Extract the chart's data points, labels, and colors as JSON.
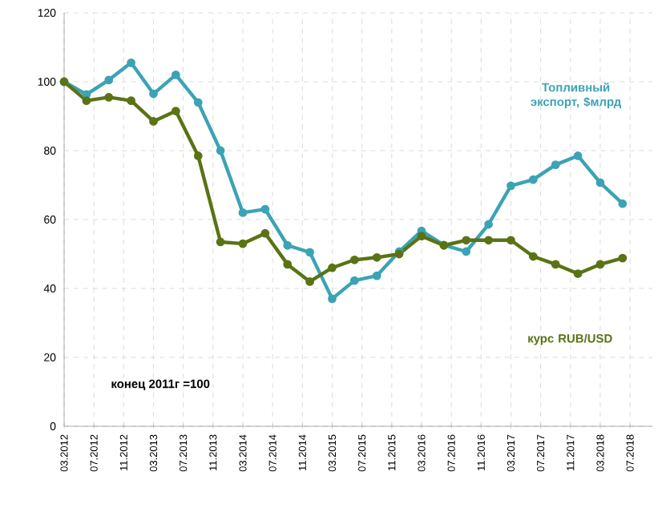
{
  "chart_data": {
    "type": "line",
    "x": [
      "2012-03",
      "2012-06",
      "2012-09",
      "2012-12",
      "2013-03",
      "2013-06",
      "2013-09",
      "2013-12",
      "2014-03",
      "2014-06",
      "2014-09",
      "2014-12",
      "2015-03",
      "2015-06",
      "2015-09",
      "2015-12",
      "2016-03",
      "2016-06",
      "2016-09",
      "2016-12",
      "2017-03",
      "2017-06",
      "2017-09",
      "2017-12",
      "2018-03",
      "2018-06"
    ],
    "series": [
      {
        "name": "Топливный экспорт, $млрд",
        "color": "#3ba3b5",
        "values": [
          100,
          96.3,
          100.5,
          105.5,
          96.5,
          102,
          94,
          80,
          62,
          63,
          52.5,
          50.5,
          37,
          42.3,
          43.7,
          50.7,
          56.7,
          52.6,
          50.7,
          58.6,
          69.8,
          71.6,
          75.9,
          78.5,
          70.7,
          64.6
        ]
      },
      {
        "name": "курс RUB/USD",
        "color": "#5a7314",
        "values": [
          100,
          94.5,
          95.5,
          94.5,
          88.5,
          91.5,
          78.5,
          53.5,
          53,
          56,
          47,
          42,
          46,
          48.3,
          49,
          50,
          55.2,
          52.5,
          54,
          54,
          54,
          49.3,
          47,
          44.3,
          47,
          48.8
        ]
      }
    ],
    "annotations": [
      "конец 2011г =100"
    ],
    "xlim": [
      "2012-03",
      "2018-10"
    ],
    "xticks": [
      {
        "value": "2012-03",
        "label": "03.2012"
      },
      {
        "value": "2012-07",
        "label": "07.2012"
      },
      {
        "value": "2012-11",
        "label": "11.2012"
      },
      {
        "value": "2013-03",
        "label": "03.2013"
      },
      {
        "value": "2013-07",
        "label": "07.2013"
      },
      {
        "value": "2013-11",
        "label": "11.2013"
      },
      {
        "value": "2014-03",
        "label": "03.2014"
      },
      {
        "value": "2014-07",
        "label": "07.2014"
      },
      {
        "value": "2014-11",
        "label": "11.2014"
      },
      {
        "value": "2015-03",
        "label": "03.2015"
      },
      {
        "value": "2015-07",
        "label": "07.2015"
      },
      {
        "value": "2015-11",
        "label": "11.2015"
      },
      {
        "value": "2016-03",
        "label": "03.2016"
      },
      {
        "value": "2016-07",
        "label": "07.2016"
      },
      {
        "value": "2016-11",
        "label": "11.2016"
      },
      {
        "value": "2017-03",
        "label": "03.2017"
      },
      {
        "value": "2017-07",
        "label": "07.2017"
      },
      {
        "value": "2017-11",
        "label": "11.2017"
      },
      {
        "value": "2018-03",
        "label": "03.2018"
      },
      {
        "value": "2018-07",
        "label": "07.2018"
      }
    ],
    "ylim": [
      0,
      120
    ],
    "yticks": [
      0,
      20,
      40,
      60,
      80,
      100,
      120
    ],
    "grid": true,
    "marker": "circle",
    "line_style": "solid"
  }
}
